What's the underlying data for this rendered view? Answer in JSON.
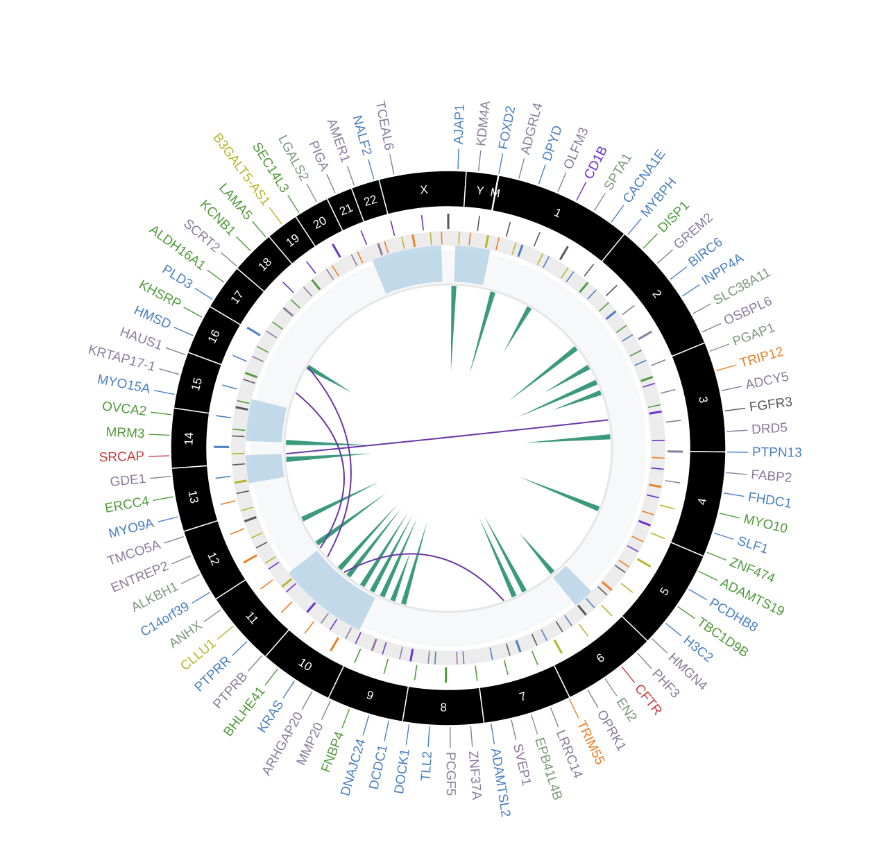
{
  "colors": {
    "ideogram": "#000000",
    "track_bg": "#ececec",
    "inner_bg": "#f7f8f9",
    "heat": "#b8d3e8",
    "spike": "#3c9a7c",
    "link": "#6a35a6"
  },
  "chromosomes": [
    {
      "label": "1",
      "size": 248
    },
    {
      "label": "2",
      "size": 242
    },
    {
      "label": "3",
      "size": 198
    },
    {
      "label": "4",
      "size": 190
    },
    {
      "label": "5",
      "size": 181
    },
    {
      "label": "6",
      "size": 171
    },
    {
      "label": "7",
      "size": 159
    },
    {
      "label": "8",
      "size": 145
    },
    {
      "label": "9",
      "size": 138
    },
    {
      "label": "10",
      "size": 134
    },
    {
      "label": "11",
      "size": 135
    },
    {
      "label": "12",
      "size": 133
    },
    {
      "label": "13",
      "size": 114
    },
    {
      "label": "14",
      "size": 107
    },
    {
      "label": "15",
      "size": 102
    },
    {
      "label": "16",
      "size": 90
    },
    {
      "label": "17",
      "size": 83
    },
    {
      "label": "18",
      "size": 80
    },
    {
      "label": "19",
      "size": 59
    },
    {
      "label": "20",
      "size": 64
    },
    {
      "label": "21",
      "size": 47
    },
    {
      "label": "22",
      "size": 51
    },
    {
      "label": "X",
      "size": 156
    },
    {
      "label": "Y",
      "size": 57
    },
    {
      "label": "M",
      "size": 1
    }
  ],
  "genes": [
    {
      "name": "AJAP1",
      "color": "#4a7fc1"
    },
    {
      "name": "KDM4A",
      "color": "#8c7a9c"
    },
    {
      "name": "FOXD2",
      "color": "#4a7fc1"
    },
    {
      "name": "ADGRL4",
      "color": "#8c7a9c"
    },
    {
      "name": "DPYD",
      "color": "#4a7fc1"
    },
    {
      "name": "OLFM3",
      "color": "#8c7a9c"
    },
    {
      "name": "CD1B",
      "color": "#6a2fd0"
    },
    {
      "name": "SPTA1",
      "color": "#7b9a7a"
    },
    {
      "name": "CACNA1E",
      "color": "#4a7fc1"
    },
    {
      "name": "MYBPH",
      "color": "#4a7fc1"
    },
    {
      "name": "DISP1",
      "color": "#4f9a3a"
    },
    {
      "name": "GREM2",
      "color": "#8c7a9c"
    },
    {
      "name": "BIRC6",
      "color": "#4a7fc1"
    },
    {
      "name": "INPP4A",
      "color": "#4a7fc1"
    },
    {
      "name": "SLC38A11",
      "color": "#7b9a7a"
    },
    {
      "name": "OSBPL6",
      "color": "#8c7a9c"
    },
    {
      "name": "PGAP1",
      "color": "#7b9a7a"
    },
    {
      "name": "TRIP12",
      "color": "#ef7d22"
    },
    {
      "name": "ADCY5",
      "color": "#8c7a9c"
    },
    {
      "name": "FGFR3",
      "color": "#555555"
    },
    {
      "name": "DRD5",
      "color": "#8c7a9c"
    },
    {
      "name": "PTPN13",
      "color": "#4a7fc1"
    },
    {
      "name": "FABP2",
      "color": "#8c7a9c"
    },
    {
      "name": "FHDC1",
      "color": "#4a7fc1"
    },
    {
      "name": "MYO10",
      "color": "#4f9a3a"
    },
    {
      "name": "SLF1",
      "color": "#4a7fc1"
    },
    {
      "name": "ZNF474",
      "color": "#4f9a3a"
    },
    {
      "name": "ADAMTS19",
      "color": "#4f9a3a"
    },
    {
      "name": "PCDHB8",
      "color": "#4a7fc1"
    },
    {
      "name": "TBC1D9B",
      "color": "#4f9a3a"
    },
    {
      "name": "H3C2",
      "color": "#4a7fc1"
    },
    {
      "name": "HMGN4",
      "color": "#8c7a9c"
    },
    {
      "name": "PHF3",
      "color": "#8c7a9c"
    },
    {
      "name": "CFTR",
      "color": "#c43c3c"
    },
    {
      "name": "EN2",
      "color": "#7b9a7a"
    },
    {
      "name": "OPRK1",
      "color": "#8c7a9c"
    },
    {
      "name": "TRIM55",
      "color": "#ef7d22"
    },
    {
      "name": "LRRC14",
      "color": "#8c7a9c"
    },
    {
      "name": "EPB41L4B",
      "color": "#7b9a7a"
    },
    {
      "name": "SVEP1",
      "color": "#8c7a9c"
    },
    {
      "name": "ADAMTSL2",
      "color": "#4a7fc1"
    },
    {
      "name": "ZNF37A",
      "color": "#8c7a9c"
    },
    {
      "name": "PCGF5",
      "color": "#8c7a9c"
    },
    {
      "name": "TLL2",
      "color": "#4a7fc1"
    },
    {
      "name": "DOCK1",
      "color": "#4a7fc1"
    },
    {
      "name": "DCDC1",
      "color": "#4a7fc1"
    },
    {
      "name": "DNAJC24",
      "color": "#4a7fc1"
    },
    {
      "name": "FNBP4",
      "color": "#4f9a3a"
    },
    {
      "name": "MMP20",
      "color": "#8c7a9c"
    },
    {
      "name": "ARHGAP20",
      "color": "#8c7a9c"
    },
    {
      "name": "KRAS",
      "color": "#4a7fc1"
    },
    {
      "name": "BHLHE41",
      "color": "#4f9a3a"
    },
    {
      "name": "PTPRB",
      "color": "#8c7a9c"
    },
    {
      "name": "PTPRR",
      "color": "#4a7fc1"
    },
    {
      "name": "CLLU1",
      "color": "#b5b52e"
    },
    {
      "name": "ANHX",
      "color": "#7b9a7a"
    },
    {
      "name": "C14orf39",
      "color": "#4a7fc1"
    },
    {
      "name": "ALKBH1",
      "color": "#7b9a7a"
    },
    {
      "name": "ENTREP2",
      "color": "#8c7a9c"
    },
    {
      "name": "TMCO5A",
      "color": "#8c7a9c"
    },
    {
      "name": "MYO9A",
      "color": "#4a7fc1"
    },
    {
      "name": "ERCC4",
      "color": "#4f9a3a"
    },
    {
      "name": "GDE1",
      "color": "#8c7a9c"
    },
    {
      "name": "SRCAP",
      "color": "#c43c3c"
    },
    {
      "name": "MRM3",
      "color": "#4f9a3a"
    },
    {
      "name": "OVCA2",
      "color": "#4f9a3a"
    },
    {
      "name": "MYO15A",
      "color": "#4a7fc1"
    },
    {
      "name": "KRTAP17-1",
      "color": "#8c7a9c"
    },
    {
      "name": "HAUS1",
      "color": "#8c7a9c"
    },
    {
      "name": "HMSD",
      "color": "#4a7fc1"
    },
    {
      "name": "KHSRP",
      "color": "#4f9a3a"
    },
    {
      "name": "PLD3",
      "color": "#4a7fc1"
    },
    {
      "name": "ALDH16A1",
      "color": "#4f9a3a"
    },
    {
      "name": "SCRT2",
      "color": "#8c7a9c"
    },
    {
      "name": "KCNB1",
      "color": "#4f9a3a"
    },
    {
      "name": "LAMA5",
      "color": "#4f9a3a"
    },
    {
      "name": "B3GALT5-AS1",
      "color": "#b5b52e"
    },
    {
      "name": "SEC14L3",
      "color": "#4f9a3a"
    },
    {
      "name": "LGALS2",
      "color": "#7b9a7a"
    },
    {
      "name": "PIGA",
      "color": "#8c7a9c"
    },
    {
      "name": "AMER1",
      "color": "#8c7a9c"
    },
    {
      "name": "NALF2",
      "color": "#4a7fc1"
    },
    {
      "name": "TCEAL6",
      "color": "#8c7a9c"
    }
  ]
}
